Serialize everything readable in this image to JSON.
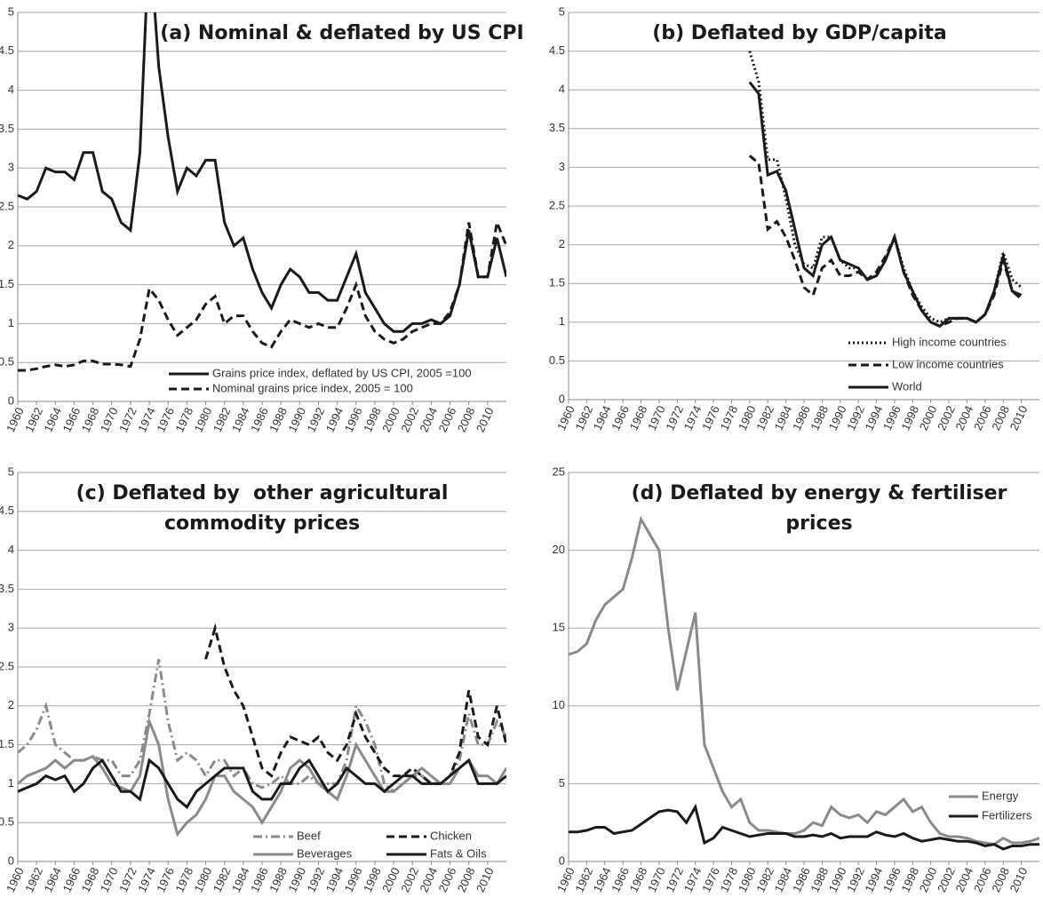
{
  "chart_data": [
    {
      "type": "line",
      "title": [
        "(a) Nominal & deflated by US CPI"
      ],
      "x": [
        1960,
        1961,
        1962,
        1963,
        1964,
        1965,
        1966,
        1967,
        1968,
        1969,
        1970,
        1971,
        1972,
        1973,
        1974,
        1975,
        1976,
        1977,
        1978,
        1979,
        1980,
        1981,
        1982,
        1983,
        1984,
        1985,
        1986,
        1987,
        1988,
        1989,
        1990,
        1991,
        1992,
        1993,
        1994,
        1995,
        1996,
        1997,
        1998,
        1999,
        2000,
        2001,
        2002,
        2003,
        2004,
        2005,
        2006,
        2007,
        2008,
        2009,
        2010,
        2011,
        2012
      ],
      "xlim": [
        1960,
        2012
      ],
      "xticks": [
        1960,
        1962,
        1964,
        1966,
        1968,
        1970,
        1972,
        1974,
        1976,
        1978,
        1980,
        1982,
        1984,
        1986,
        1988,
        1990,
        1992,
        1994,
        1996,
        1998,
        2000,
        2002,
        2004,
        2006,
        2008,
        2010
      ],
      "ylim": [
        0,
        5
      ],
      "yticks": [
        0,
        0.5,
        1,
        1.5,
        2,
        2.5,
        3,
        3.5,
        4,
        4.5,
        5
      ],
      "grid": true,
      "legend": "lower right",
      "legend_columns": 1,
      "series": [
        {
          "name": "Grains price index, deflated by US CPI, 2005 =100",
          "color": "#1a1a1a",
          "dash": "solid",
          "values": [
            2.65,
            2.6,
            2.7,
            3.0,
            2.95,
            2.95,
            2.85,
            3.2,
            3.2,
            2.7,
            2.6,
            2.3,
            2.2,
            3.2,
            6.0,
            4.3,
            3.4,
            2.7,
            3.0,
            2.9,
            3.1,
            3.1,
            2.3,
            2.0,
            2.1,
            1.7,
            1.4,
            1.2,
            1.5,
            1.7,
            1.6,
            1.4,
            1.4,
            1.3,
            1.3,
            1.6,
            1.9,
            1.4,
            1.2,
            1.0,
            0.9,
            0.9,
            1.0,
            1.0,
            1.05,
            1.0,
            1.1,
            1.5,
            2.2,
            1.6,
            1.6,
            2.1,
            1.6
          ]
        },
        {
          "name": "Nominal grains price index, 2005 = 100",
          "color": "#1a1a1a",
          "dash": "dashed",
          "values": [
            0.4,
            0.4,
            0.42,
            0.45,
            0.47,
            0.45,
            0.47,
            0.52,
            0.52,
            0.48,
            0.48,
            0.47,
            0.45,
            0.8,
            1.45,
            1.3,
            1.05,
            0.85,
            0.95,
            1.05,
            1.25,
            1.35,
            1.0,
            1.1,
            1.1,
            0.9,
            0.75,
            0.7,
            0.9,
            1.05,
            1.0,
            0.95,
            1.0,
            0.95,
            0.95,
            1.2,
            1.5,
            1.1,
            0.9,
            0.8,
            0.75,
            0.8,
            0.9,
            0.95,
            1.0,
            1.0,
            1.15,
            1.5,
            2.3,
            1.6,
            1.6,
            2.3,
            2.0
          ]
        }
      ]
    },
    {
      "type": "line",
      "title": [
        "(b) Deflated by GDP/capita"
      ],
      "x": [
        1960,
        1961,
        1962,
        1963,
        1964,
        1965,
        1966,
        1967,
        1968,
        1969,
        1970,
        1971,
        1972,
        1973,
        1974,
        1975,
        1976,
        1977,
        1978,
        1979,
        1980,
        1981,
        1982,
        1983,
        1984,
        1985,
        1986,
        1987,
        1988,
        1989,
        1990,
        1991,
        1992,
        1993,
        1994,
        1995,
        1996,
        1997,
        1998,
        1999,
        2000,
        2001,
        2002,
        2003,
        2004,
        2005,
        2006,
        2007,
        2008,
        2009,
        2010,
        2011,
        2012
      ],
      "xlim": [
        1960,
        2012
      ],
      "xticks": [
        1960,
        1962,
        1964,
        1966,
        1968,
        1970,
        1972,
        1974,
        1976,
        1978,
        1980,
        1982,
        1984,
        1986,
        1988,
        1990,
        1992,
        1994,
        1996,
        1998,
        2000,
        2002,
        2004,
        2006,
        2008,
        2010
      ],
      "ylim": [
        0,
        5
      ],
      "yticks": [
        0,
        0.5,
        1,
        1.5,
        2,
        2.5,
        3,
        3.5,
        4,
        4.5,
        5
      ],
      "grid": true,
      "legend": "lower right",
      "legend_columns": 1,
      "series": [
        {
          "name": "High income countries",
          "color": "#1a1a1a",
          "dash": "dotted",
          "values": [
            null,
            null,
            null,
            null,
            null,
            null,
            null,
            null,
            null,
            null,
            null,
            null,
            null,
            null,
            null,
            null,
            null,
            null,
            null,
            null,
            4.5,
            4.1,
            3.1,
            3.1,
            2.6,
            2.0,
            1.75,
            1.7,
            2.1,
            2.1,
            1.8,
            1.7,
            1.7,
            1.55,
            1.6,
            1.8,
            2.1,
            1.7,
            1.4,
            1.2,
            1.05,
            1.0,
            1.05,
            1.05,
            1.05,
            1.0,
            1.1,
            1.4,
            1.9,
            1.55,
            1.45,
            null,
            null
          ]
        },
        {
          "name": "Low income countries",
          "color": "#1a1a1a",
          "dash": "dashed",
          "values": [
            null,
            null,
            null,
            null,
            null,
            null,
            null,
            null,
            null,
            null,
            null,
            null,
            null,
            null,
            null,
            null,
            null,
            null,
            null,
            null,
            3.15,
            3.05,
            2.2,
            2.3,
            2.1,
            1.8,
            1.45,
            1.35,
            1.7,
            1.8,
            1.6,
            1.6,
            1.65,
            1.55,
            1.65,
            1.85,
            2.1,
            1.65,
            1.35,
            1.15,
            1.0,
            0.95,
            1.0,
            1.05,
            1.05,
            1.0,
            1.1,
            1.35,
            1.8,
            1.4,
            1.3,
            null,
            null
          ]
        },
        {
          "name": "World",
          "color": "#1a1a1a",
          "dash": "solid",
          "values": [
            null,
            null,
            null,
            null,
            null,
            null,
            null,
            null,
            null,
            null,
            null,
            null,
            null,
            null,
            null,
            null,
            null,
            null,
            null,
            null,
            4.1,
            3.95,
            2.9,
            2.95,
            2.7,
            2.2,
            1.7,
            1.6,
            2.0,
            2.1,
            1.8,
            1.75,
            1.7,
            1.55,
            1.6,
            1.8,
            2.1,
            1.65,
            1.4,
            1.15,
            1.0,
            0.95,
            1.05,
            1.05,
            1.05,
            1.0,
            1.1,
            1.4,
            1.85,
            1.4,
            1.35,
            null,
            null
          ]
        }
      ]
    },
    {
      "type": "line",
      "title": [
        "(c) Deflated by  other agricultural",
        "commodity prices"
      ],
      "x": [
        1960,
        1961,
        1962,
        1963,
        1964,
        1965,
        1966,
        1967,
        1968,
        1969,
        1970,
        1971,
        1972,
        1973,
        1974,
        1975,
        1976,
        1977,
        1978,
        1979,
        1980,
        1981,
        1982,
        1983,
        1984,
        1985,
        1986,
        1987,
        1988,
        1989,
        1990,
        1991,
        1992,
        1993,
        1994,
        1995,
        1996,
        1997,
        1998,
        1999,
        2000,
        2001,
        2002,
        2003,
        2004,
        2005,
        2006,
        2007,
        2008,
        2009,
        2010,
        2011,
        2012
      ],
      "xlim": [
        1960,
        2012
      ],
      "xticks": [
        1960,
        1962,
        1964,
        1966,
        1968,
        1970,
        1972,
        1974,
        1976,
        1978,
        1980,
        1982,
        1984,
        1986,
        1988,
        1990,
        1992,
        1994,
        1996,
        1998,
        2000,
        2002,
        2004,
        2006,
        2008,
        2010
      ],
      "ylim": [
        0,
        5
      ],
      "yticks": [
        0,
        0.5,
        1,
        1.5,
        2,
        2.5,
        3,
        3.5,
        4,
        4.5,
        5
      ],
      "grid": true,
      "legend": "lower right",
      "legend_columns": 2,
      "series": [
        {
          "name": "Beef",
          "color": "#8a8a8a",
          "dash": "dashdot",
          "values": [
            1.4,
            1.5,
            1.7,
            2.0,
            1.5,
            1.4,
            1.3,
            1.3,
            1.35,
            1.3,
            1.3,
            1.1,
            1.1,
            1.3,
            1.9,
            2.6,
            1.8,
            1.3,
            1.4,
            1.3,
            1.1,
            1.3,
            1.3,
            1.1,
            1.2,
            1.0,
            0.95,
            1.0,
            1.1,
            1.0,
            1.0,
            1.1,
            1.0,
            1.0,
            1.0,
            1.3,
            2.0,
            1.8,
            1.5,
            1.0,
            0.9,
            1.0,
            1.1,
            1.1,
            1.0,
            1.0,
            1.1,
            1.3,
            1.9,
            1.5,
            1.5,
            1.8,
            1.6
          ]
        },
        {
          "name": "Chicken",
          "color": "#1a1a1a",
          "dash": "dashed",
          "values": [
            null,
            null,
            null,
            null,
            null,
            null,
            null,
            null,
            null,
            null,
            null,
            null,
            null,
            null,
            null,
            null,
            null,
            null,
            null,
            null,
            2.6,
            3.0,
            2.5,
            2.2,
            2.0,
            1.6,
            1.2,
            1.1,
            1.4,
            1.6,
            1.55,
            1.5,
            1.6,
            1.4,
            1.3,
            1.5,
            1.9,
            1.6,
            1.4,
            1.2,
            1.1,
            1.1,
            1.2,
            1.1,
            1.0,
            1.0,
            1.1,
            1.4,
            2.2,
            1.6,
            1.5,
            2.0,
            1.5
          ]
        },
        {
          "name": "Beverages",
          "color": "#8a8a8a",
          "dash": "solid",
          "values": [
            1.0,
            1.1,
            1.15,
            1.2,
            1.3,
            1.2,
            1.3,
            1.3,
            1.35,
            1.2,
            1.0,
            0.95,
            0.9,
            1.1,
            1.8,
            1.5,
            0.8,
            0.35,
            0.5,
            0.6,
            0.8,
            1.1,
            1.1,
            0.9,
            0.8,
            0.7,
            0.5,
            0.7,
            0.9,
            1.2,
            1.3,
            1.2,
            1.0,
            0.9,
            0.8,
            1.1,
            1.5,
            1.3,
            1.1,
            0.9,
            0.9,
            1.0,
            1.1,
            1.2,
            1.1,
            1.0,
            1.0,
            1.2,
            1.3,
            1.1,
            1.1,
            1.0,
            1.2
          ]
        },
        {
          "name": "Fats & Oils",
          "color": "#1a1a1a",
          "dash": "solid",
          "values": [
            0.9,
            0.95,
            1.0,
            1.1,
            1.05,
            1.1,
            0.9,
            1.0,
            1.2,
            1.3,
            1.1,
            0.9,
            0.9,
            0.8,
            1.3,
            1.2,
            1.0,
            0.8,
            0.7,
            0.9,
            1.0,
            1.1,
            1.2,
            1.2,
            1.2,
            0.9,
            0.8,
            0.8,
            1.0,
            1.0,
            1.2,
            1.3,
            1.1,
            0.9,
            1.0,
            1.2,
            1.1,
            1.0,
            1.0,
            0.9,
            1.0,
            1.1,
            1.1,
            1.0,
            1.0,
            1.0,
            1.1,
            1.2,
            1.3,
            1.0,
            1.0,
            1.0,
            1.1
          ]
        }
      ]
    },
    {
      "type": "line",
      "title": [
        "(d) Deflated by energy & fertiliser",
        "prices"
      ],
      "x": [
        1960,
        1961,
        1962,
        1963,
        1964,
        1965,
        1966,
        1967,
        1968,
        1969,
        1970,
        1971,
        1972,
        1973,
        1974,
        1975,
        1976,
        1977,
        1978,
        1979,
        1980,
        1981,
        1982,
        1983,
        1984,
        1985,
        1986,
        1987,
        1988,
        1989,
        1990,
        1991,
        1992,
        1993,
        1994,
        1995,
        1996,
        1997,
        1998,
        1999,
        2000,
        2001,
        2002,
        2003,
        2004,
        2005,
        2006,
        2007,
        2008,
        2009,
        2010,
        2011,
        2012
      ],
      "xlim": [
        1960,
        2012
      ],
      "xticks": [
        1960,
        1962,
        1964,
        1966,
        1968,
        1970,
        1972,
        1974,
        1976,
        1978,
        1980,
        1982,
        1984,
        1986,
        1988,
        1990,
        1992,
        1994,
        1996,
        1998,
        2000,
        2002,
        2004,
        2006,
        2008,
        2010
      ],
      "ylim": [
        0,
        25
      ],
      "yticks": [
        0,
        5,
        10,
        15,
        20,
        25
      ],
      "grid": true,
      "legend": "lower right",
      "legend_columns": 1,
      "series": [
        {
          "name": "Energy",
          "color": "#8a8a8a",
          "dash": "solid",
          "values": [
            13.3,
            13.5,
            14.0,
            15.5,
            16.5,
            17.0,
            17.5,
            19.5,
            22.0,
            21.0,
            20.0,
            15.0,
            11.0,
            13.5,
            16.0,
            7.5,
            6.0,
            4.5,
            3.5,
            4.0,
            2.5,
            2.0,
            2.0,
            1.9,
            1.8,
            1.8,
            2.0,
            2.5,
            2.3,
            3.5,
            3.0,
            2.8,
            3.0,
            2.5,
            3.2,
            3.0,
            3.5,
            4.0,
            3.2,
            3.5,
            2.5,
            1.8,
            1.6,
            1.6,
            1.5,
            1.3,
            1.2,
            1.1,
            1.5,
            1.2,
            1.2,
            1.3,
            1.5
          ]
        },
        {
          "name": "Fertilizers",
          "color": "#1a1a1a",
          "dash": "solid",
          "values": [
            1.9,
            1.9,
            2.0,
            2.2,
            2.2,
            1.8,
            1.9,
            2.0,
            2.4,
            2.8,
            3.2,
            3.3,
            3.2,
            2.5,
            3.5,
            1.2,
            1.5,
            2.2,
            2.0,
            1.8,
            1.6,
            1.7,
            1.8,
            1.8,
            1.8,
            1.6,
            1.6,
            1.7,
            1.6,
            1.8,
            1.5,
            1.6,
            1.6,
            1.6,
            1.9,
            1.7,
            1.6,
            1.8,
            1.5,
            1.3,
            1.4,
            1.5,
            1.4,
            1.3,
            1.3,
            1.2,
            1.0,
            1.1,
            0.8,
            1.0,
            1.0,
            1.1,
            1.1
          ]
        }
      ]
    }
  ]
}
